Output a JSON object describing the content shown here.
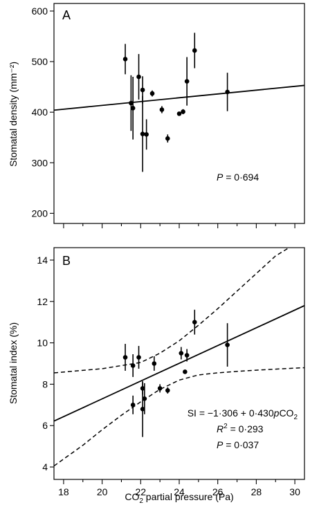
{
  "chart_data": [
    {
      "panel": "A",
      "type": "scatter",
      "ylabel": "Stomatal density (mm⁻²)",
      "xlim": [
        17.5,
        30.5
      ],
      "ylim": [
        180,
        615
      ],
      "x_ticks": [
        18,
        20,
        22,
        24,
        26,
        28,
        30
      ],
      "y_ticks": [
        200,
        300,
        400,
        500,
        600
      ],
      "points": [
        {
          "x": 21.2,
          "y": 505,
          "err": 30
        },
        {
          "x": 21.5,
          "y": 418,
          "err": 55
        },
        {
          "x": 21.6,
          "y": 408,
          "err": 62
        },
        {
          "x": 21.9,
          "y": 470,
          "err": 45
        },
        {
          "x": 22.1,
          "y": 444,
          "err": 27
        },
        {
          "x": 22.1,
          "y": 357,
          "err": 75
        },
        {
          "x": 22.3,
          "y": 356,
          "err": 30
        },
        {
          "x": 22.6,
          "y": 437,
          "err": 6
        },
        {
          "x": 23.1,
          "y": 405,
          "err": 7
        },
        {
          "x": 23.4,
          "y": 348,
          "err": 8
        },
        {
          "x": 24.0,
          "y": 397,
          "err": 3
        },
        {
          "x": 24.2,
          "y": 401,
          "err": 5
        },
        {
          "x": 24.4,
          "y": 461,
          "err": 48
        },
        {
          "x": 24.8,
          "y": 522,
          "err": 35
        },
        {
          "x": 26.5,
          "y": 440,
          "err": 38
        }
      ],
      "fit_line": {
        "x": [
          17.5,
          30.5
        ],
        "y": [
          404,
          453
        ]
      },
      "annotations": {
        "p_label": "P",
        "p_value": " = 0·694"
      }
    },
    {
      "panel": "B",
      "type": "scatter",
      "ylabel": "Stomatal index (%)",
      "xlabel_main": "CO",
      "xlabel_sub": "2",
      "xlabel_rest": " partial pressure (Pa)",
      "xlim": [
        17.5,
        30.5
      ],
      "ylim": [
        3.4,
        14.6
      ],
      "x_ticks": [
        18,
        20,
        22,
        24,
        26,
        28,
        30
      ],
      "y_ticks": [
        4,
        6,
        8,
        10,
        12,
        14
      ],
      "points": [
        {
          "x": 21.2,
          "y": 9.3,
          "err": 0.65
        },
        {
          "x": 21.6,
          "y": 8.9,
          "err": 0.55
        },
        {
          "x": 21.6,
          "y": 7.0,
          "err": 0.45
        },
        {
          "x": 21.9,
          "y": 9.3,
          "err": 0.55
        },
        {
          "x": 22.1,
          "y": 7.8,
          "err": 0.3
        },
        {
          "x": 22.1,
          "y": 6.8,
          "err": 1.35
        },
        {
          "x": 22.2,
          "y": 7.3,
          "err": 0.75
        },
        {
          "x": 22.7,
          "y": 9.0,
          "err": 0.35
        },
        {
          "x": 23.0,
          "y": 7.8,
          "err": 0.2
        },
        {
          "x": 23.4,
          "y": 7.7,
          "err": 0.15
        },
        {
          "x": 24.1,
          "y": 9.5,
          "err": 0.3
        },
        {
          "x": 24.3,
          "y": 8.6,
          "err": 0.1
        },
        {
          "x": 24.4,
          "y": 9.4,
          "err": 0.3
        },
        {
          "x": 24.8,
          "y": 11.0,
          "err": 0.6
        },
        {
          "x": 26.5,
          "y": 9.9,
          "err": 1.05
        }
      ],
      "fit_line": {
        "x": [
          17.5,
          30.5
        ],
        "y": [
          6.22,
          11.8
        ]
      },
      "ci_upper": {
        "x": [
          17.5,
          20,
          22,
          23,
          24,
          25,
          26,
          27,
          28,
          29,
          29.7
        ],
        "y": [
          8.55,
          8.75,
          9.05,
          9.5,
          10.1,
          10.85,
          11.65,
          12.5,
          13.35,
          14.2,
          14.6
        ]
      },
      "ci_lower": {
        "x": [
          17.5,
          19,
          20,
          21,
          22,
          23,
          24,
          25,
          26,
          27,
          28,
          29,
          30.5
        ],
        "y": [
          4.05,
          5.05,
          5.8,
          6.5,
          7.15,
          7.75,
          8.2,
          8.45,
          8.55,
          8.62,
          8.68,
          8.73,
          8.8
        ]
      },
      "annotations": {
        "eq_left": "SI = −1·306 + 0·430",
        "eq_var": "p",
        "eq_co": "CO",
        "eq_sub": "2",
        "r2_label": "R",
        "r2_sup": "2",
        "r2_value": " = 0·293",
        "p_label": "P",
        "p_value": " = 0·037"
      }
    }
  ]
}
